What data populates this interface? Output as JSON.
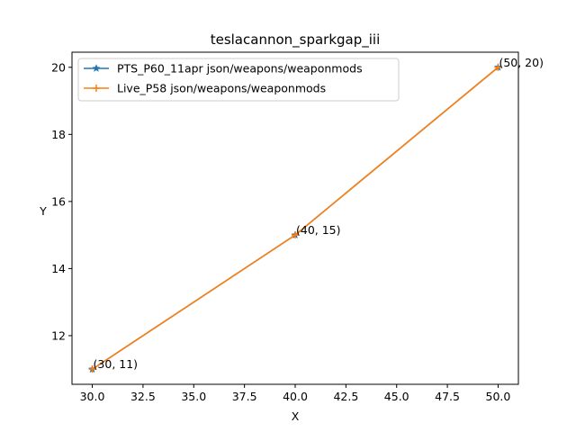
{
  "chart_data": {
    "type": "line",
    "title": "teslacannon_sparkgap_iii",
    "xlabel": "X",
    "ylabel": "Y",
    "xlim": [
      29.0,
      51.0
    ],
    "ylim": [
      10.55,
      20.45
    ],
    "xticks": [
      30.0,
      32.5,
      35.0,
      37.5,
      40.0,
      42.5,
      45.0,
      47.5,
      50.0
    ],
    "xtick_labels": [
      "30.0",
      "32.5",
      "35.0",
      "37.5",
      "40.0",
      "42.5",
      "45.0",
      "47.5",
      "50.0"
    ],
    "yticks": [
      12,
      14,
      16,
      18,
      20
    ],
    "ytick_labels": [
      "12",
      "14",
      "16",
      "18",
      "20"
    ],
    "grid": false,
    "legend_position": "top-left",
    "series": [
      {
        "name": "PTS_P60_11apr json/weapons/weaponmods",
        "color": "#1f77b4",
        "marker": "star",
        "x": [
          30,
          40,
          50
        ],
        "y": [
          11,
          15,
          20
        ]
      },
      {
        "name": "Live_P58 json/weapons/weaponmods",
        "color": "#ff7f0e",
        "marker": "plus",
        "x": [
          30,
          40,
          50
        ],
        "y": [
          11,
          15,
          20
        ]
      }
    ],
    "annotations": [
      {
        "text": "(30, 11)",
        "x": 30,
        "y": 11
      },
      {
        "text": "(40, 15)",
        "x": 40,
        "y": 15
      },
      {
        "text": "(50, 20)",
        "x": 50,
        "y": 20
      }
    ]
  }
}
